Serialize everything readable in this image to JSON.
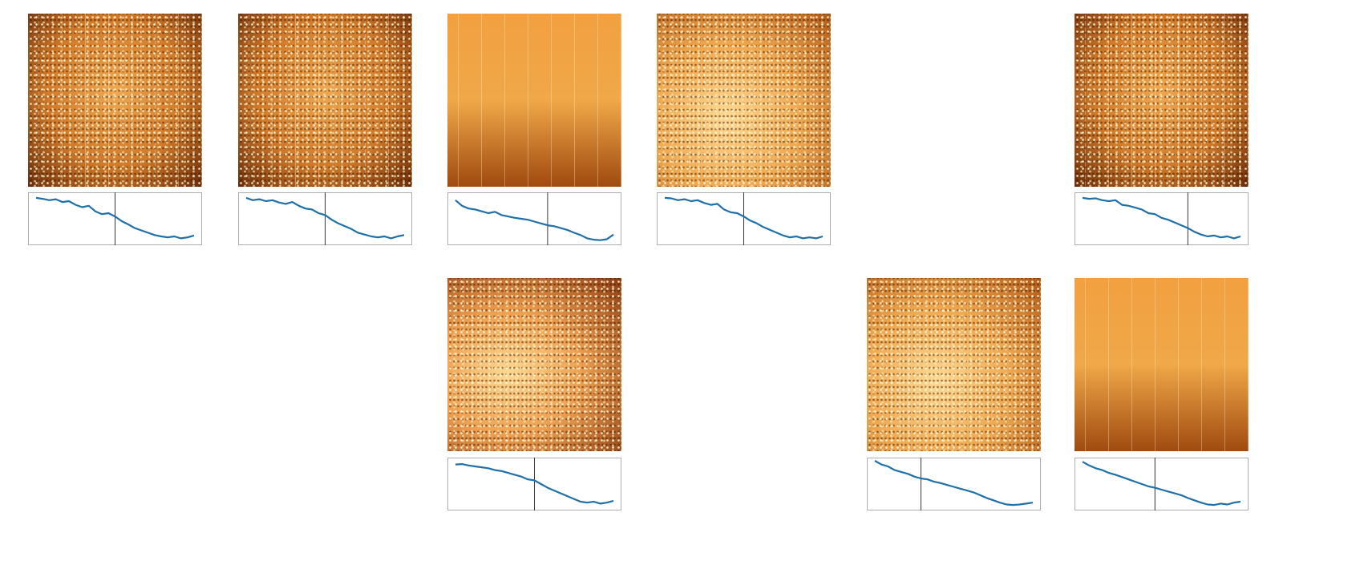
{
  "chart_data": [
    {
      "type": "line",
      "ylim": [
        0,
        1
      ],
      "marker_index": 12,
      "color": "#1f6fa8",
      "values": [
        0.95,
        0.93,
        0.9,
        0.92,
        0.86,
        0.88,
        0.8,
        0.75,
        0.78,
        0.66,
        0.6,
        0.62,
        0.55,
        0.45,
        0.38,
        0.3,
        0.25,
        0.2,
        0.15,
        0.12,
        0.1,
        0.12,
        0.08,
        0.1,
        0.14
      ]
    },
    {
      "type": "line",
      "ylim": [
        0,
        1
      ],
      "marker_index": 12,
      "color": "#1f6fa8",
      "values": [
        0.95,
        0.9,
        0.92,
        0.88,
        0.9,
        0.85,
        0.82,
        0.86,
        0.78,
        0.72,
        0.7,
        0.62,
        0.58,
        0.48,
        0.4,
        0.34,
        0.28,
        0.2,
        0.16,
        0.12,
        0.1,
        0.12,
        0.08,
        0.12,
        0.15
      ]
    },
    {
      "type": "line",
      "ylim": [
        0,
        1
      ],
      "marker_index": 14,
      "color": "#1f6fa8",
      "values": [
        0.9,
        0.78,
        0.72,
        0.7,
        0.66,
        0.62,
        0.65,
        0.58,
        0.55,
        0.52,
        0.5,
        0.48,
        0.44,
        0.4,
        0.36,
        0.34,
        0.3,
        0.26,
        0.2,
        0.15,
        0.08,
        0.05,
        0.04,
        0.06,
        0.16
      ]
    },
    {
      "type": "line",
      "ylim": [
        0,
        1
      ],
      "marker_index": 12,
      "color": "#1f6fa8",
      "values": [
        0.95,
        0.94,
        0.9,
        0.92,
        0.88,
        0.9,
        0.84,
        0.8,
        0.82,
        0.7,
        0.64,
        0.62,
        0.55,
        0.46,
        0.4,
        0.32,
        0.26,
        0.2,
        0.14,
        0.1,
        0.12,
        0.08,
        0.1,
        0.08,
        0.12
      ]
    },
    {
      "type": "line",
      "ylim": [
        0,
        1
      ],
      "marker_index": 16,
      "color": "#1f6fa8",
      "values": [
        0.95,
        0.93,
        0.94,
        0.9,
        0.88,
        0.9,
        0.8,
        0.78,
        0.74,
        0.7,
        0.62,
        0.6,
        0.52,
        0.48,
        0.42,
        0.36,
        0.3,
        0.22,
        0.16,
        0.12,
        0.14,
        0.1,
        0.12,
        0.08,
        0.12
      ]
    },
    {
      "type": "line",
      "ylim": [
        0,
        1
      ],
      "marker_index": 12,
      "color": "#1f6fa8",
      "values": [
        0.92,
        0.93,
        0.9,
        0.88,
        0.86,
        0.84,
        0.8,
        0.78,
        0.74,
        0.7,
        0.66,
        0.6,
        0.58,
        0.5,
        0.42,
        0.36,
        0.3,
        0.24,
        0.18,
        0.12,
        0.1,
        0.12,
        0.08,
        0.1,
        0.14
      ]
    },
    {
      "type": "line",
      "ylim": [
        0,
        1
      ],
      "marker_index": 7,
      "color": "#1f6fa8",
      "values": [
        1.0,
        0.92,
        0.88,
        0.8,
        0.76,
        0.72,
        0.66,
        0.62,
        0.6,
        0.55,
        0.52,
        0.48,
        0.44,
        0.4,
        0.36,
        0.32,
        0.26,
        0.2,
        0.15,
        0.1,
        0.06,
        0.05,
        0.06,
        0.08,
        0.1
      ]
    },
    {
      "type": "line",
      "ylim": [
        0,
        1
      ],
      "marker_index": 11,
      "color": "#1f6fa8",
      "values": [
        0.98,
        0.9,
        0.84,
        0.8,
        0.74,
        0.7,
        0.65,
        0.6,
        0.55,
        0.5,
        0.45,
        0.42,
        0.38,
        0.34,
        0.3,
        0.26,
        0.2,
        0.15,
        0.1,
        0.06,
        0.05,
        0.08,
        0.06,
        0.1,
        0.12
      ]
    }
  ]
}
